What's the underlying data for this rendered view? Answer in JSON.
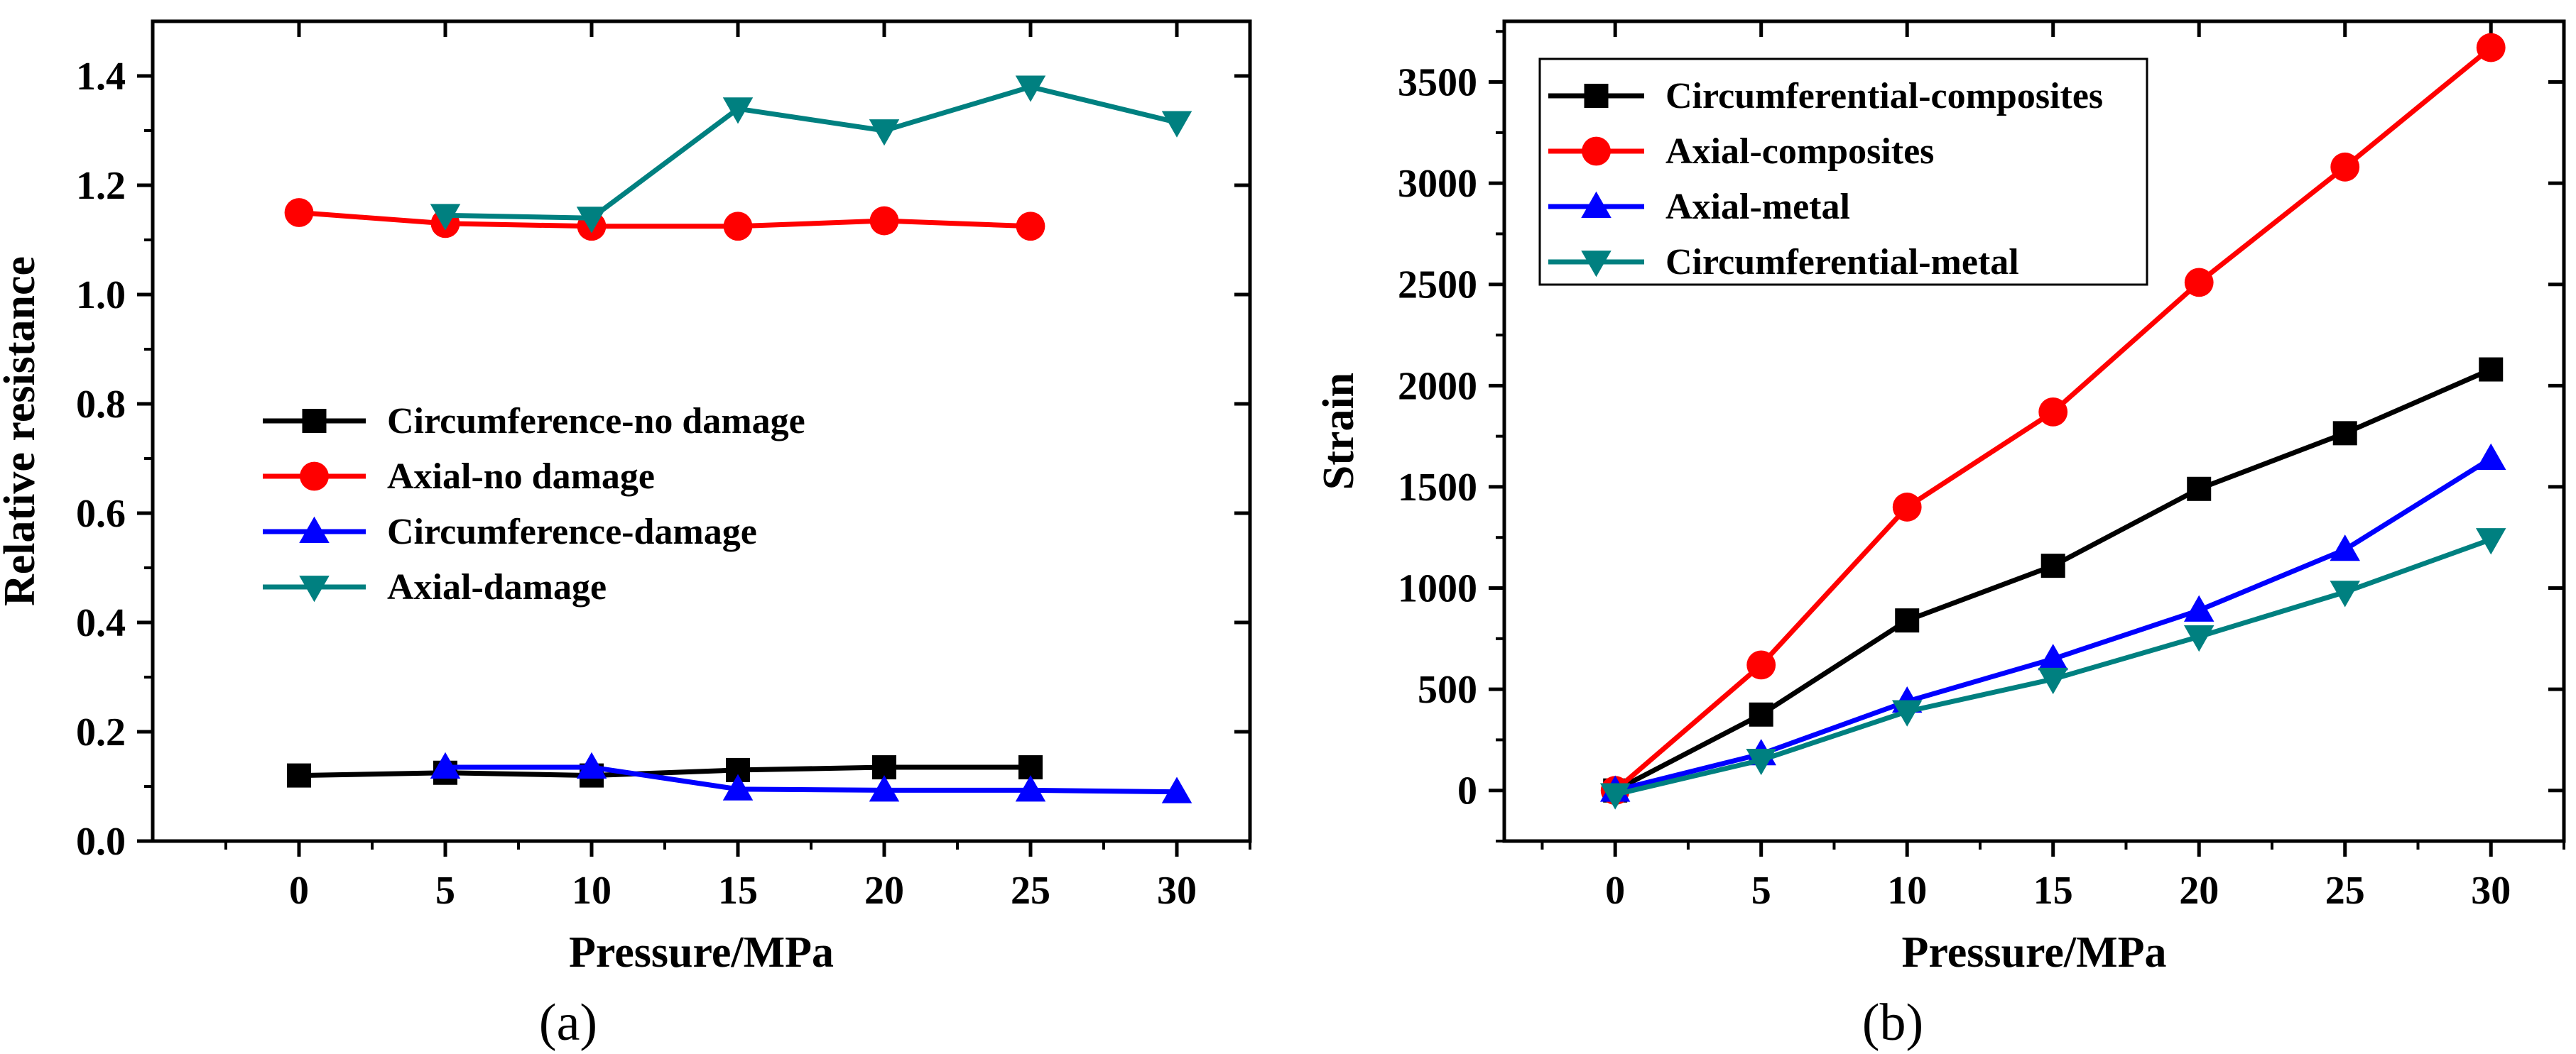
{
  "chart_data": [
    {
      "type": "line",
      "panel_label": "(a)",
      "title": "",
      "xlabel": "Pressure/MPa",
      "ylabel": "Relative resistance",
      "xlim": [
        -5,
        32.5
      ],
      "ylim": [
        0,
        1.5
      ],
      "xticks": [
        0,
        5,
        10,
        15,
        20,
        25,
        30
      ],
      "yticks": [
        0.0,
        0.2,
        0.4,
        0.6,
        0.8,
        1.0,
        1.2,
        1.4
      ],
      "ytick_labels": [
        "0.0",
        "0.2",
        "0.4",
        "0.6",
        "0.8",
        "1.0",
        "1.2",
        "1.4"
      ],
      "grid": false,
      "legend_position": "center-left",
      "series": [
        {
          "name": "Circumference-no damage",
          "color": "#000000",
          "marker": "square",
          "x": [
            0,
            5,
            10,
            15,
            20,
            25
          ],
          "values": [
            0.12,
            0.125,
            0.12,
            0.13,
            0.135,
            0.135
          ]
        },
        {
          "name": "Axial-no damage",
          "color": "#ff0000",
          "marker": "circle",
          "x": [
            0,
            5,
            10,
            15,
            20,
            25
          ],
          "values": [
            1.15,
            1.13,
            1.125,
            1.125,
            1.135,
            1.125
          ]
        },
        {
          "name": "Circumference-damage",
          "color": "#0000ff",
          "marker": "triangle-up",
          "x": [
            5,
            10,
            15,
            20,
            25,
            30
          ],
          "values": [
            0.135,
            0.135,
            0.095,
            0.093,
            0.093,
            0.09
          ]
        },
        {
          "name": "Axial-damage",
          "color": "#008080",
          "marker": "triangle-down",
          "x": [
            5,
            10,
            15,
            20,
            25,
            30
          ],
          "values": [
            1.145,
            1.14,
            1.34,
            1.3,
            1.38,
            1.315
          ]
        }
      ]
    },
    {
      "type": "line",
      "panel_label": "(b)",
      "title": "",
      "xlabel": "Pressure/MPa",
      "ylabel": "Strain",
      "xlim": [
        -3.8,
        32.5
      ],
      "ylim": [
        -250,
        3800
      ],
      "xticks": [
        0,
        5,
        10,
        15,
        20,
        25,
        30
      ],
      "yticks": [
        0,
        500,
        1000,
        1500,
        2000,
        2500,
        3000,
        3500
      ],
      "ytick_labels": [
        "0",
        "500",
        "1000",
        "1500",
        "2000",
        "2500",
        "3000",
        "3500"
      ],
      "grid": false,
      "legend_position": "top-left",
      "series": [
        {
          "name": "Circumferential-composites",
          "color": "#000000",
          "marker": "square",
          "x": [
            0,
            5,
            10,
            15,
            20,
            25,
            30
          ],
          "values": [
            0,
            375,
            840,
            1110,
            1490,
            1765,
            2080
          ]
        },
        {
          "name": "Axial-composites",
          "color": "#ff0000",
          "marker": "circle",
          "x": [
            0,
            5,
            10,
            15,
            20,
            25,
            30
          ],
          "values": [
            0,
            620,
            1400,
            1870,
            2510,
            3080,
            3670
          ]
        },
        {
          "name": "Axial-metal",
          "color": "#0000ff",
          "marker": "triangle-up",
          "x": [
            0,
            5,
            10,
            15,
            20,
            25,
            30
          ],
          "values": [
            0,
            180,
            440,
            650,
            890,
            1190,
            1640
          ]
        },
        {
          "name": "Circumferential-metal",
          "color": "#008080",
          "marker": "triangle-down",
          "x": [
            0,
            5,
            10,
            15,
            20,
            25,
            30
          ],
          "values": [
            -20,
            150,
            390,
            550,
            760,
            980,
            1240
          ]
        }
      ]
    }
  ]
}
